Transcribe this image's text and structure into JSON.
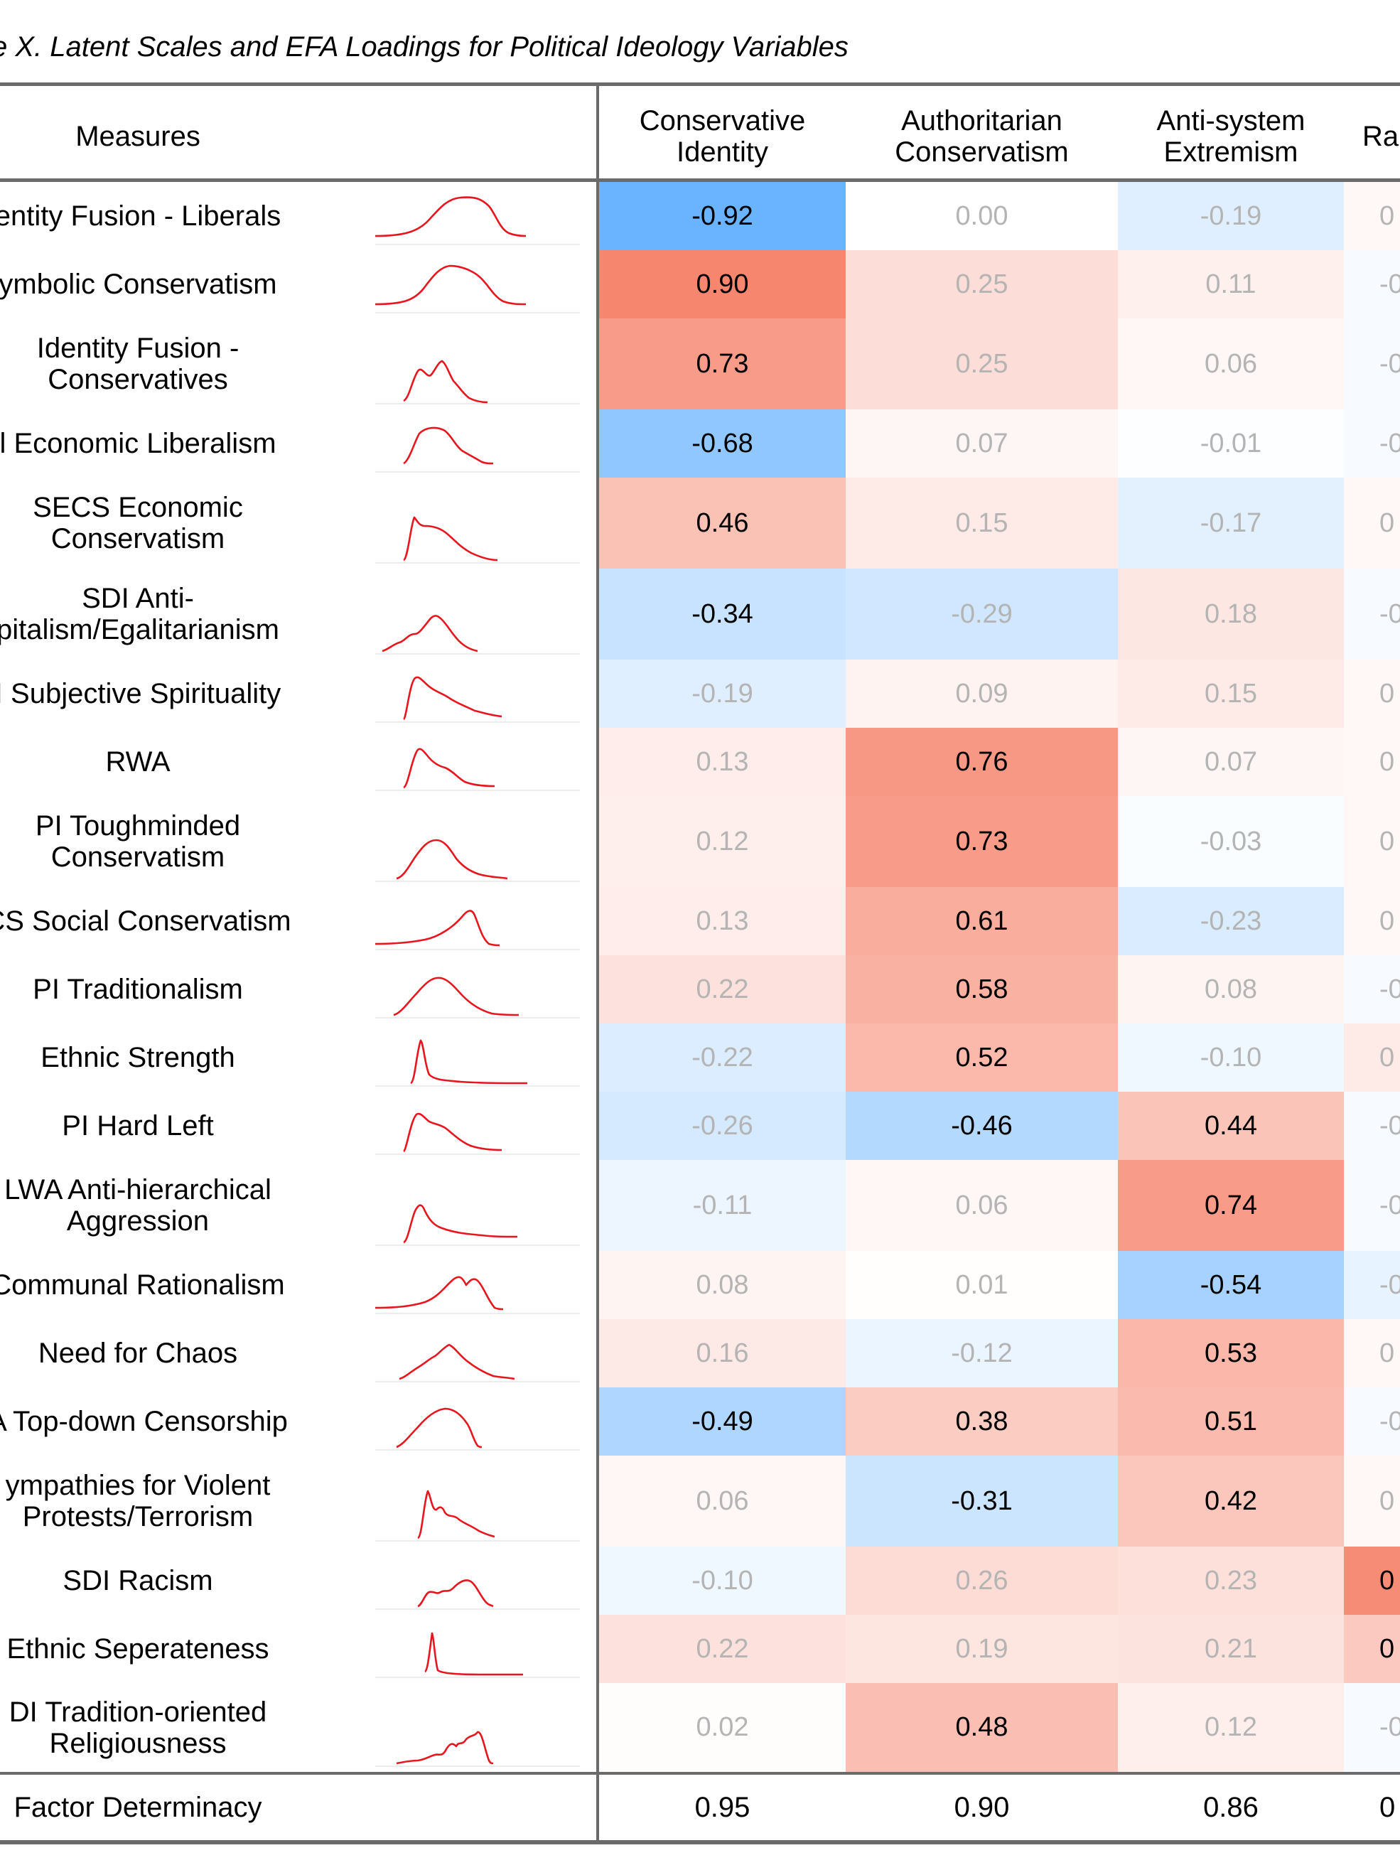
{
  "title": "e X. Latent Scales and EFA Loadings for Political Ideology Variables",
  "columns": {
    "measures": "Measures",
    "factors": [
      [
        "Conservative",
        "Identity"
      ],
      [
        "Authoritarian",
        "Conservatism"
      ],
      [
        "Anti-system",
        "Extremism"
      ],
      [
        "Ra",
        ""
      ]
    ]
  },
  "colors": {
    "strong_negative": "#66b2ff",
    "strong_positive": "#f7876c",
    "faint_text": "#b4b4b4",
    "sparkline": "#e8151d",
    "rule": "#6a6a6a"
  },
  "chart_data": {
    "type": "heatmap",
    "title": "e X. Latent Scales and EFA Loadings for Political Ideology Variables",
    "row_header": "Measures",
    "columns": [
      "Conservative Identity",
      "Authoritarian Conservatism",
      "Anti-system Extremism",
      "Ra"
    ],
    "rows": [
      {
        "label": [
          "entity Fusion - Liberals"
        ],
        "values": [
          "-0.92",
          "0.00",
          "-0.19",
          "0"
        ],
        "bold": [
          true,
          false,
          false,
          false
        ]
      },
      {
        "label": [
          "ymbolic Conservatism"
        ],
        "values": [
          "0.90",
          "0.25",
          "0.11",
          "-0"
        ],
        "bold": [
          true,
          false,
          false,
          false
        ]
      },
      {
        "label": [
          "Identity Fusion -",
          "Conservatives"
        ],
        "values": [
          "0.73",
          "0.25",
          "0.06",
          "-0"
        ],
        "bold": [
          true,
          false,
          false,
          false
        ]
      },
      {
        "label": [
          "l Economic Liberalism"
        ],
        "values": [
          "-0.68",
          "0.07",
          "-0.01",
          "-0"
        ],
        "bold": [
          true,
          false,
          false,
          false
        ]
      },
      {
        "label": [
          "SECS Economic",
          "Conservatism"
        ],
        "values": [
          "0.46",
          "0.15",
          "-0.17",
          "0"
        ],
        "bold": [
          true,
          false,
          false,
          false
        ]
      },
      {
        "label": [
          "SDI Anti-",
          "pitalism/Egalitarianism"
        ],
        "values": [
          "-0.34",
          "-0.29",
          "0.18",
          "-0"
        ],
        "bold": [
          true,
          false,
          false,
          false
        ]
      },
      {
        "label": [
          "I Subjective Spirituality"
        ],
        "values": [
          "-0.19",
          "0.09",
          "0.15",
          "0"
        ],
        "bold": [
          false,
          false,
          false,
          false
        ]
      },
      {
        "label": [
          "RWA"
        ],
        "values": [
          "0.13",
          "0.76",
          "0.07",
          "0"
        ],
        "bold": [
          false,
          true,
          false,
          false
        ]
      },
      {
        "label": [
          "PI Toughminded",
          "Conservatism"
        ],
        "values": [
          "0.12",
          "0.73",
          "-0.03",
          "0"
        ],
        "bold": [
          false,
          true,
          false,
          false
        ]
      },
      {
        "label": [
          "CS Social Conservatism"
        ],
        "values": [
          "0.13",
          "0.61",
          "-0.23",
          "0"
        ],
        "bold": [
          false,
          true,
          false,
          false
        ]
      },
      {
        "label": [
          "PI Traditionalism"
        ],
        "values": [
          "0.22",
          "0.58",
          "0.08",
          "-0"
        ],
        "bold": [
          false,
          true,
          false,
          false
        ]
      },
      {
        "label": [
          "Ethnic Strength"
        ],
        "values": [
          "-0.22",
          "0.52",
          "-0.10",
          "0"
        ],
        "bold": [
          false,
          true,
          false,
          false
        ]
      },
      {
        "label": [
          "PI Hard Left"
        ],
        "values": [
          "-0.26",
          "-0.46",
          "0.44",
          "-0"
        ],
        "bold": [
          false,
          true,
          true,
          false
        ]
      },
      {
        "label": [
          "LWA Anti-hierarchical",
          "Aggression"
        ],
        "values": [
          "-0.11",
          "0.06",
          "0.74",
          "-0"
        ],
        "bold": [
          false,
          false,
          true,
          false
        ]
      },
      {
        "label": [
          "Communal Rationalism"
        ],
        "values": [
          "0.08",
          "0.01",
          "-0.54",
          "-0"
        ],
        "bold": [
          false,
          false,
          true,
          false
        ]
      },
      {
        "label": [
          "Need for Chaos"
        ],
        "values": [
          "0.16",
          "-0.12",
          "0.53",
          "0"
        ],
        "bold": [
          false,
          false,
          true,
          false
        ]
      },
      {
        "label": [
          "A Top-down Censorship"
        ],
        "values": [
          "-0.49",
          "0.38",
          "0.51",
          "-0"
        ],
        "bold": [
          true,
          true,
          true,
          false
        ]
      },
      {
        "label": [
          "ympathies for Violent",
          "Protests/Terrorism"
        ],
        "values": [
          "0.06",
          "-0.31",
          "0.42",
          "0"
        ],
        "bold": [
          false,
          true,
          true,
          false
        ]
      },
      {
        "label": [
          "SDI Racism"
        ],
        "values": [
          "-0.10",
          "0.26",
          "0.23",
          "0"
        ],
        "bold": [
          false,
          false,
          false,
          true
        ]
      },
      {
        "label": [
          "Ethnic Seperateness"
        ],
        "values": [
          "0.22",
          "0.19",
          "0.21",
          "0"
        ],
        "bold": [
          false,
          false,
          false,
          true
        ]
      },
      {
        "label": [
          "DI Tradition-oriented",
          "Religiousness"
        ],
        "values": [
          "0.02",
          "0.48",
          "0.12",
          "-0"
        ],
        "bold": [
          false,
          true,
          false,
          false
        ]
      }
    ],
    "footer": {
      "label": "Factor Determinacy",
      "values": [
        "0.95",
        "0.90",
        "0.86",
        "0"
      ]
    }
  }
}
